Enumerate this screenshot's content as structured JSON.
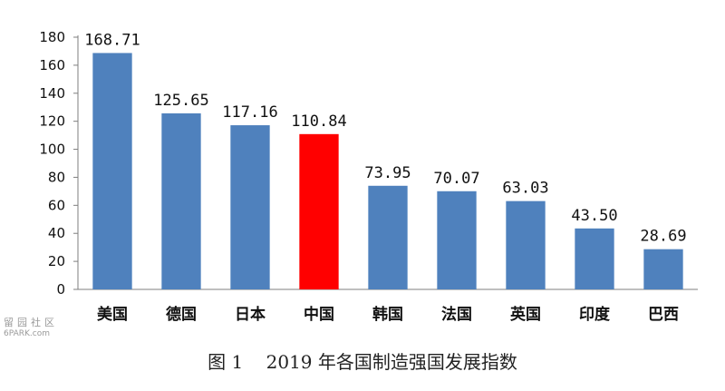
{
  "chart_data": {
    "type": "bar",
    "categories": [
      "美国",
      "德国",
      "日本",
      "中国",
      "韩国",
      "法国",
      "英国",
      "印度",
      "巴西"
    ],
    "values": [
      168.71,
      125.65,
      117.16,
      110.84,
      73.95,
      70.07,
      63.03,
      43.5,
      28.69
    ],
    "value_labels": [
      "168.71",
      "125.65",
      "117.16",
      "110.84",
      "73.95",
      "70.07",
      "63.03",
      "43.50",
      "28.69"
    ],
    "highlight_category": "中国",
    "title": "",
    "xlabel": "",
    "ylabel": "",
    "ylim": [
      0,
      180
    ],
    "yticks": [
      0,
      20,
      40,
      60,
      80,
      100,
      120,
      140,
      160,
      180
    ],
    "grid": false,
    "legend": "none",
    "colors": {
      "bar": "#4f81bd",
      "highlight": "#ff0000",
      "axis": "#7f7f7f"
    }
  },
  "caption": {
    "figure_number": "图 1",
    "text": "2019 年各国制造强国发展指数"
  },
  "watermark": {
    "line1": "留园社区",
    "line2": "6PARK.com"
  }
}
